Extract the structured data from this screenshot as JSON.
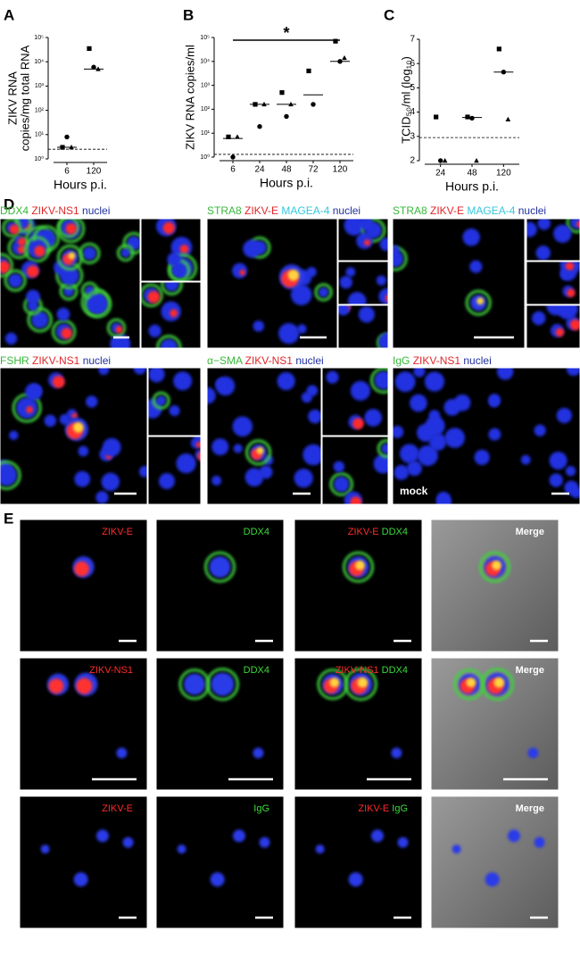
{
  "panel_letters": [
    "A",
    "B",
    "C",
    "D",
    "E"
  ],
  "chart_data": [
    {
      "type": "scatter",
      "ylabel": [
        "ZIKV RNA",
        "copies/mg total RNA"
      ],
      "xlabel": "Hours p.i.",
      "categories": [
        "6",
        "120"
      ],
      "log_scale": true,
      "ylim": [
        1,
        100000
      ],
      "yticks": [
        {
          "value": 1,
          "label": "10⁰"
        },
        {
          "value": 10,
          "label": "10¹"
        },
        {
          "value": 100,
          "label": "10²"
        },
        {
          "value": 1000,
          "label": "10³"
        },
        {
          "value": 10000,
          "label": "10⁴"
        },
        {
          "value": 100000,
          "label": "10⁵"
        }
      ],
      "series": [
        {
          "marker": "square",
          "color": "#000000",
          "values": [
            3,
            35000
          ]
        },
        {
          "marker": "circle",
          "color": "#000000",
          "values": [
            8,
            6000
          ]
        },
        {
          "marker": "triangle",
          "color": "#000000",
          "values": [
            3,
            5000
          ]
        }
      ],
      "medians": [
        3,
        5000
      ],
      "threshold": 2.5
    },
    {
      "type": "scatter",
      "ylabel": [
        "ZIKV RNA copies/ml"
      ],
      "xlabel": "Hours p.i.",
      "categories": [
        "6",
        "24",
        "48",
        "72",
        "120"
      ],
      "log_scale": true,
      "ylim": [
        1,
        100000
      ],
      "yticks": [
        {
          "value": 1,
          "label": "10⁰"
        },
        {
          "value": 10,
          "label": "10¹"
        },
        {
          "value": 100,
          "label": "10²"
        },
        {
          "value": 1000,
          "label": "10³"
        },
        {
          "value": 10000,
          "label": "10⁴"
        },
        {
          "value": 100000,
          "label": "10⁵"
        }
      ],
      "series": [
        {
          "marker": "square",
          "color": "#000000",
          "values": [
            7,
            160,
            500,
            4000,
            70000
          ]
        },
        {
          "marker": "circle",
          "color": "#000000",
          "values": [
            1,
            19,
            50,
            160,
            10000
          ]
        },
        {
          "marker": "triangle",
          "color": "#000000",
          "values": [
            7,
            160,
            160,
            null,
            14000
          ]
        }
      ],
      "medians": [
        6,
        160,
        160,
        400,
        10000
      ],
      "threshold": 1.3,
      "annotation": "*"
    },
    {
      "type": "scatter",
      "ylabel": [
        "TCID₅₀/ml (log₁₀)"
      ],
      "xlabel": "Hours p.i.",
      "categories": [
        "24",
        "48",
        "120"
      ],
      "log_scale": false,
      "ylim": [
        2,
        7
      ],
      "yticks": [
        2,
        3,
        4,
        5,
        6,
        7
      ],
      "series": [
        {
          "marker": "square",
          "color": "#000000",
          "values": [
            3.8,
            3.8,
            6.6
          ]
        },
        {
          "marker": "circle",
          "color": "#000000",
          "values": [
            2,
            3.75,
            5.65
          ]
        },
        {
          "marker": "triangle",
          "color": "#000000",
          "values": [
            2,
            2,
            3.7
          ]
        }
      ],
      "medians": [
        null,
        3.78,
        5.65
      ],
      "threshold": 2.95
    }
  ],
  "panel_d": {
    "images": [
      {
        "label": [
          {
            "text": "DDX4",
            "color": "#37b83a"
          },
          {
            "text": "ZIKV-NS1",
            "color": "#e0262a"
          },
          {
            "text": "nuclei",
            "color": "#1f2f9e"
          }
        ]
      },
      {
        "label": [
          {
            "text": "STRA8",
            "color": "#37b83a"
          },
          {
            "text": "ZIKV-E",
            "color": "#e0262a"
          },
          {
            "text": "MAGEA-4",
            "color": "#35c8dc"
          },
          {
            "text": "nuclei",
            "color": "#1f2f9e"
          }
        ]
      },
      {
        "label": [
          {
            "text": "STRA8",
            "color": "#37b83a"
          },
          {
            "text": "ZIKV-E",
            "color": "#e0262a"
          },
          {
            "text": "MAGEA-4",
            "color": "#35c8dc"
          },
          {
            "text": "nuclei",
            "color": "#1f2f9e"
          }
        ]
      },
      {
        "label": [
          {
            "text": "FSHR",
            "color": "#37b83a"
          },
          {
            "text": "ZIKV-NS1",
            "color": "#e0262a"
          },
          {
            "text": "nuclei",
            "color": "#1f2f9e"
          }
        ]
      },
      {
        "label": [
          {
            "text": "α−SMA",
            "color": "#37b83a"
          },
          {
            "text": "ZIKV-NS1",
            "color": "#e0262a"
          },
          {
            "text": "nuclei",
            "color": "#1f2f9e"
          }
        ]
      },
      {
        "label": [
          {
            "text": "IgG",
            "color": "#37b83a"
          },
          {
            "text": "ZIKV-NS1",
            "color": "#e0262a"
          },
          {
            "text": "nuclei",
            "color": "#1f2f9e"
          }
        ],
        "annotation": "mock"
      }
    ]
  },
  "panel_e": {
    "rows": [
      [
        [
          {
            "text": "ZIKV-E",
            "color": "#ff2b2b"
          }
        ],
        [
          {
            "text": "DDX4",
            "color": "#3bdc3b"
          }
        ],
        [
          {
            "text": "ZIKV-E",
            "color": "#ff2b2b"
          },
          {
            "text": "DDX4",
            "color": "#3bdc3b"
          }
        ],
        [
          {
            "text": "Merge",
            "color": "#ffffff"
          }
        ]
      ],
      [
        [
          {
            "text": "ZIKV-NS1",
            "color": "#ff2b2b"
          }
        ],
        [
          {
            "text": "DDX4",
            "color": "#3bdc3b"
          }
        ],
        [
          {
            "text": "ZIKV-NS1",
            "color": "#ff2b2b"
          },
          {
            "text": "DDX4",
            "color": "#3bdc3b"
          }
        ],
        [
          {
            "text": "Merge",
            "color": "#ffffff"
          }
        ]
      ],
      [
        [
          {
            "text": "ZIKV-E",
            "color": "#ff2b2b"
          }
        ],
        [
          {
            "text": "IgG",
            "color": "#3bdc3b"
          }
        ],
        [
          {
            "text": "ZIKV-E",
            "color": "#ff2b2b"
          },
          {
            "text": "IgG",
            "color": "#3bdc3b"
          }
        ],
        [
          {
            "text": "Merge",
            "color": "#ffffff"
          }
        ]
      ]
    ]
  }
}
